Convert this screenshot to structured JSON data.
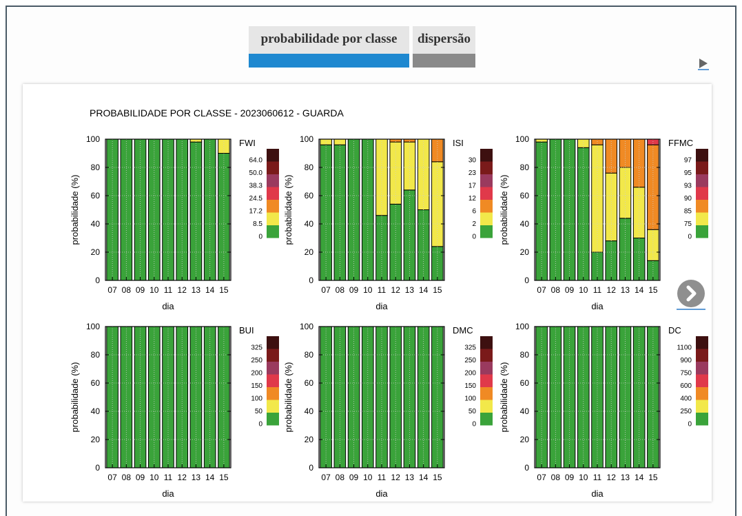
{
  "tabs": [
    {
      "label": "probabilidade por classe",
      "active": true
    },
    {
      "label": "dispersão",
      "active": false
    }
  ],
  "icons": {
    "play": "play-icon",
    "next": "chevron-right-icon"
  },
  "colors": {
    "classes": [
      "#3aa33a",
      "#f2e84a",
      "#f08a24",
      "#e0394a",
      "#9a3a5e",
      "#7a1a1a",
      "#3d1010"
    ]
  },
  "chart_data": {
    "title": "PROBABILIDADE POR CLASSE - 2023060612 - GUARDA",
    "panels": [
      {
        "type": "bar",
        "stacked": true,
        "legend_title": "FWI",
        "legend_labels": [
          "0",
          "8.5",
          "17.2",
          "24.5",
          "38.3",
          "50.0",
          "64.0"
        ],
        "categories": [
          "07",
          "08",
          "09",
          "10",
          "11",
          "12",
          "13",
          "14",
          "15"
        ],
        "xlabel": "dia",
        "ylabel": "probabilidade (%)",
        "ylim": [
          0,
          100
        ],
        "yticks": [
          0,
          20,
          40,
          60,
          80,
          100
        ],
        "grid": true,
        "series": [
          {
            "values": [
              100,
              100,
              100,
              100,
              100,
              100,
              98,
              100,
              90
            ]
          },
          {
            "values": [
              0,
              0,
              0,
              0,
              0,
              0,
              2,
              0,
              10
            ]
          },
          {
            "values": [
              0,
              0,
              0,
              0,
              0,
              0,
              0,
              0,
              0
            ]
          },
          {
            "values": [
              0,
              0,
              0,
              0,
              0,
              0,
              0,
              0,
              0
            ]
          },
          {
            "values": [
              0,
              0,
              0,
              0,
              0,
              0,
              0,
              0,
              0
            ]
          },
          {
            "values": [
              0,
              0,
              0,
              0,
              0,
              0,
              0,
              0,
              0
            ]
          },
          {
            "values": [
              0,
              0,
              0,
              0,
              0,
              0,
              0,
              0,
              0
            ]
          }
        ]
      },
      {
        "type": "bar",
        "stacked": true,
        "legend_title": "ISI",
        "legend_labels": [
          "0",
          "2",
          "6",
          "12",
          "17",
          "23",
          "30"
        ],
        "categories": [
          "07",
          "08",
          "09",
          "10",
          "11",
          "12",
          "13",
          "14",
          "15"
        ],
        "xlabel": "dia",
        "ylabel": "probabilidade (%)",
        "ylim": [
          0,
          100
        ],
        "yticks": [
          0,
          20,
          40,
          60,
          80,
          100
        ],
        "grid": true,
        "series": [
          {
            "values": [
              96,
              96,
              100,
              100,
              46,
              54,
              64,
              50,
              24
            ]
          },
          {
            "values": [
              4,
              4,
              0,
              0,
              54,
              44,
              34,
              50,
              60
            ]
          },
          {
            "values": [
              0,
              0,
              0,
              0,
              0,
              2,
              2,
              0,
              16
            ]
          },
          {
            "values": [
              0,
              0,
              0,
              0,
              0,
              0,
              0,
              0,
              0
            ]
          },
          {
            "values": [
              0,
              0,
              0,
              0,
              0,
              0,
              0,
              0,
              0
            ]
          },
          {
            "values": [
              0,
              0,
              0,
              0,
              0,
              0,
              0,
              0,
              0
            ]
          },
          {
            "values": [
              0,
              0,
              0,
              0,
              0,
              0,
              0,
              0,
              0
            ]
          }
        ]
      },
      {
        "type": "bar",
        "stacked": true,
        "legend_title": "FFMC",
        "legend_labels": [
          "0",
          "75",
          "85",
          "90",
          "93",
          "95",
          "97"
        ],
        "categories": [
          "07",
          "08",
          "09",
          "10",
          "11",
          "12",
          "13",
          "14",
          "15"
        ],
        "xlabel": "dia",
        "ylabel": "probabilidade (%)",
        "ylim": [
          0,
          100
        ],
        "yticks": [
          0,
          20,
          40,
          60,
          80,
          100
        ],
        "grid": true,
        "series": [
          {
            "values": [
              98,
              100,
              100,
              94,
              20,
              28,
              44,
              30,
              14
            ]
          },
          {
            "values": [
              2,
              0,
              0,
              6,
              76,
              48,
              36,
              36,
              22
            ]
          },
          {
            "values": [
              0,
              0,
              0,
              0,
              4,
              24,
              20,
              34,
              60
            ]
          },
          {
            "values": [
              0,
              0,
              0,
              0,
              0,
              0,
              0,
              0,
              4
            ]
          },
          {
            "values": [
              0,
              0,
              0,
              0,
              0,
              0,
              0,
              0,
              0
            ]
          },
          {
            "values": [
              0,
              0,
              0,
              0,
              0,
              0,
              0,
              0,
              0
            ]
          },
          {
            "values": [
              0,
              0,
              0,
              0,
              0,
              0,
              0,
              0,
              0
            ]
          }
        ]
      },
      {
        "type": "bar",
        "stacked": true,
        "legend_title": "BUI",
        "legend_labels": [
          "0",
          "50",
          "100",
          "150",
          "200",
          "250",
          "325"
        ],
        "categories": [
          "07",
          "08",
          "09",
          "10",
          "11",
          "12",
          "13",
          "14",
          "15"
        ],
        "xlabel": "dia",
        "ylabel": "probabilidade (%)",
        "ylim": [
          0,
          100
        ],
        "yticks": [
          0,
          20,
          40,
          60,
          80,
          100
        ],
        "grid": true,
        "series": [
          {
            "values": [
              100,
              100,
              100,
              100,
              100,
              100,
              100,
              100,
              100
            ]
          }
        ]
      },
      {
        "type": "bar",
        "stacked": true,
        "legend_title": "DMC",
        "legend_labels": [
          "0",
          "50",
          "100",
          "150",
          "200",
          "250",
          "325"
        ],
        "categories": [
          "07",
          "08",
          "09",
          "10",
          "11",
          "12",
          "13",
          "14",
          "15"
        ],
        "xlabel": "dia",
        "ylabel": "probabilidade (%)",
        "ylim": [
          0,
          100
        ],
        "yticks": [
          0,
          20,
          40,
          60,
          80,
          100
        ],
        "grid": true,
        "series": [
          {
            "values": [
              100,
              100,
              100,
              100,
              100,
              100,
              100,
              100,
              100
            ]
          }
        ]
      },
      {
        "type": "bar",
        "stacked": true,
        "legend_title": "DC",
        "legend_labels": [
          "0",
          "250",
          "400",
          "600",
          "750",
          "900",
          "1100"
        ],
        "categories": [
          "07",
          "08",
          "09",
          "10",
          "11",
          "12",
          "13",
          "14",
          "15"
        ],
        "xlabel": "dia",
        "ylabel": "probabilidade (%)",
        "ylim": [
          0,
          100
        ],
        "yticks": [
          0,
          20,
          40,
          60,
          80,
          100
        ],
        "grid": true,
        "series": [
          {
            "values": [
              100,
              100,
              100,
              100,
              100,
              100,
              100,
              100,
              100
            ]
          }
        ]
      }
    ]
  }
}
